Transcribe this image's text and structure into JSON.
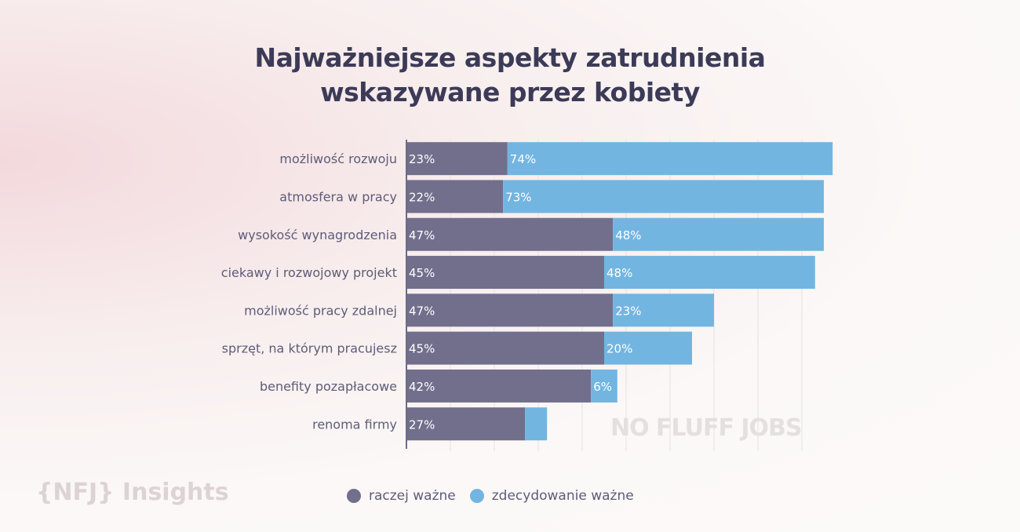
{
  "chart_data": {
    "type": "bar",
    "orientation": "horizontal",
    "stacked": true,
    "title": "Najważniejsze aspekty zatrudnienia wskazywane przez kobiety",
    "title_lines": [
      "Najważniejsze aspekty zatrudnienia",
      "wskazywane przez kobiety"
    ],
    "categories": [
      "możliwość rozwoju",
      "atmosfera w pracy",
      "wysokość wynagrodzenia",
      "ciekawy i rozwojowy projekt",
      "możliwość pracy zdalnej",
      "sprzęt, na którym pracujesz",
      "benefity pozapłacowe",
      "renoma firmy"
    ],
    "series": [
      {
        "name": "raczej ważne",
        "color": "#716f8c",
        "values": [
          23,
          22,
          47,
          45,
          47,
          45,
          42,
          27
        ],
        "labels": [
          "23%",
          "22%",
          "47%",
          "45%",
          "47%",
          "45%",
          "42%",
          "27%"
        ]
      },
      {
        "name": "zdecydowanie ważne",
        "color": "#73b5e1",
        "values": [
          74,
          73,
          48,
          48,
          23,
          20,
          6,
          5
        ],
        "labels": [
          "74%",
          "73%",
          "48%",
          "48%",
          "23%",
          "20%",
          "6%",
          ""
        ]
      }
    ],
    "xlim": [
      0,
      100
    ],
    "grid": true,
    "legend_position": "bottom"
  },
  "branding": {
    "watermark": "NO FLUFF JOBS",
    "logo": "{NFJ} Insights"
  }
}
